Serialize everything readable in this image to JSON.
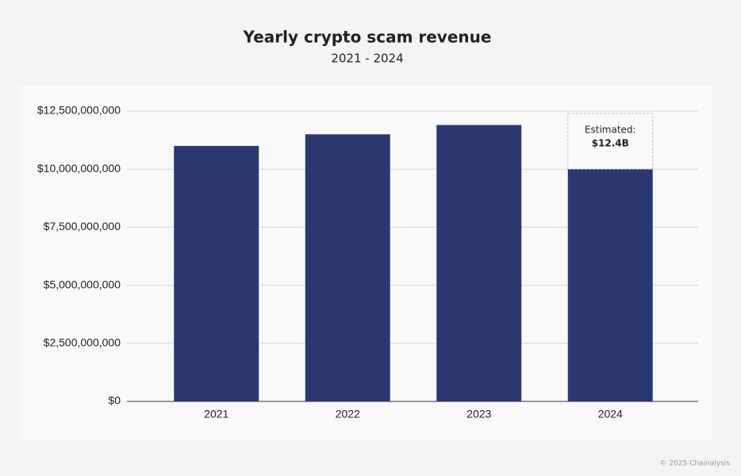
{
  "chart_data": {
    "type": "bar",
    "title": "Yearly crypto scam revenue",
    "subtitle": "2021 - 2024",
    "categories": [
      "2021",
      "2022",
      "2023",
      "2024"
    ],
    "values": [
      11000000000,
      11500000000,
      11900000000,
      10000000000
    ],
    "color": "#2b386f",
    "ylim": [
      0,
      12500000000
    ],
    "yticks": [
      {
        "value": 0,
        "label": "$0"
      },
      {
        "value": 2500000000,
        "label": "$2,500,000,000"
      },
      {
        "value": 5000000000,
        "label": "$5,000,000,000"
      },
      {
        "value": 7500000000,
        "label": "$7,500,000,000"
      },
      {
        "value": 10000000000,
        "label": "$10,000,000,000"
      },
      {
        "value": 12500000000,
        "label": "$12,500,000,000"
      }
    ],
    "grid": true,
    "annotation": {
      "label": "Estimated:",
      "value": 12400000000,
      "value_label": "$12.4B"
    },
    "footer": "© 2025 Chainalysis"
  }
}
